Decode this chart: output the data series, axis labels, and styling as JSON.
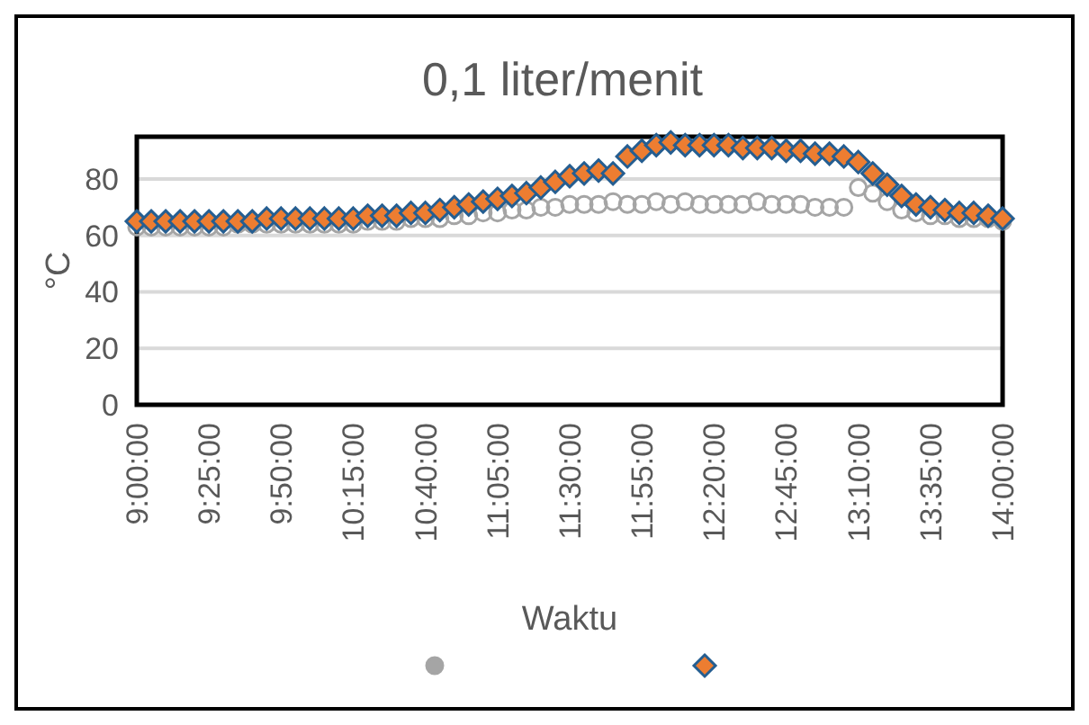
{
  "chart_data": {
    "type": "scatter",
    "title": "0,1 liter/menit",
    "xlabel": "Waktu",
    "ylabel": "°C",
    "x": [
      9,
      9.0833,
      9.1667,
      9.25,
      9.3333,
      9.4167,
      9.5,
      9.5833,
      9.6667,
      9.75,
      9.8333,
      9.9167,
      10,
      10.0833,
      10.1667,
      10.25,
      10.3333,
      10.4167,
      10.5,
      10.5833,
      10.6667,
      10.75,
      10.8333,
      10.9167,
      11,
      11.0833,
      11.1667,
      11.25,
      11.3333,
      11.4167,
      11.5,
      11.5833,
      11.6667,
      11.75,
      11.8333,
      11.9167,
      12,
      12.0833,
      12.1667,
      12.25,
      12.3333,
      12.4167,
      12.5,
      12.5833,
      12.6667,
      12.75,
      12.8333,
      12.9167,
      13,
      13.0833,
      13.1667,
      13.25,
      13.3333,
      13.4167,
      13.5,
      13.5833,
      13.6667,
      13.75,
      13.8333,
      13.9167,
      14
    ],
    "xlim": [
      9,
      14
    ],
    "xticks": [
      {
        "value": 9,
        "label": "9:00:00"
      },
      {
        "value": 9.4167,
        "label": "9:25:00"
      },
      {
        "value": 9.8333,
        "label": "9:50:00"
      },
      {
        "value": 10.25,
        "label": "10:15:00"
      },
      {
        "value": 10.6667,
        "label": "10:40:00"
      },
      {
        "value": 11.0833,
        "label": "11:05:00"
      },
      {
        "value": 11.5,
        "label": "11:30:00"
      },
      {
        "value": 11.9167,
        "label": "11:55:00"
      },
      {
        "value": 12.3333,
        "label": "12:20:00"
      },
      {
        "value": 12.75,
        "label": "12:45:00"
      },
      {
        "value": 13.1667,
        "label": "13:10:00"
      },
      {
        "value": 13.5833,
        "label": "13:35:00"
      },
      {
        "value": 14,
        "label": "14:00:00"
      }
    ],
    "ylim": [
      0,
      95
    ],
    "yticks": [
      0,
      20,
      40,
      60,
      80
    ],
    "grid": "y",
    "series": [
      {
        "color": "#a5a5a5",
        "marker": "circle",
        "values": [
          63,
          63,
          63,
          63,
          63,
          63,
          63,
          64,
          64,
          64,
          64,
          64,
          64,
          64,
          64,
          64,
          65,
          65,
          65,
          66,
          66,
          66,
          67,
          67,
          68,
          68,
          69,
          69,
          70,
          70,
          71,
          71,
          71,
          72,
          71,
          71,
          72,
          71,
          72,
          71,
          71,
          71,
          71,
          72,
          71,
          71,
          71,
          70,
          70,
          70,
          77,
          75,
          72,
          69,
          68,
          67,
          67,
          66,
          66,
          66,
          65
        ]
      },
      {
        "color": "#ed7d31",
        "marker": "diamond",
        "values": [
          65,
          65,
          65,
          65,
          65,
          65,
          65,
          65,
          65,
          66,
          66,
          66,
          66,
          66,
          66,
          66,
          67,
          67,
          67,
          68,
          68,
          69,
          70,
          71,
          72,
          73,
          74,
          75,
          77,
          79,
          81,
          82,
          83,
          82,
          88,
          90,
          92,
          93,
          92,
          92,
          92,
          92,
          91,
          91,
          91,
          90,
          90,
          89,
          89,
          88,
          86,
          82,
          78,
          74,
          71,
          70,
          69,
          68,
          68,
          67,
          66
        ]
      }
    ]
  }
}
